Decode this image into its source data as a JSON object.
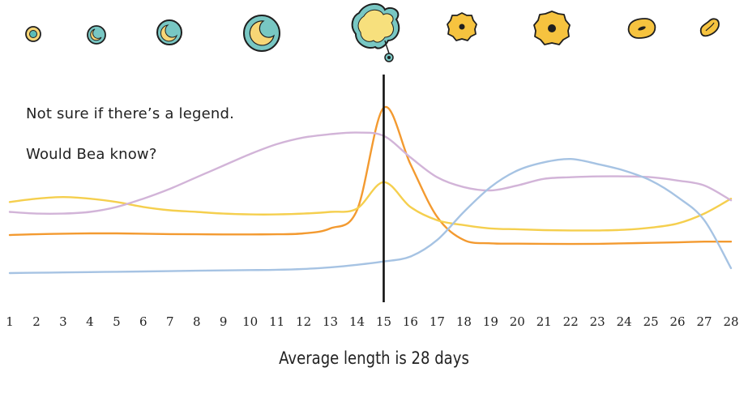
{
  "chart_data": {
    "type": "line",
    "title": "",
    "xlabel": "Average length is 28 days",
    "ylabel": "",
    "x": [
      1,
      2,
      3,
      4,
      5,
      6,
      7,
      8,
      9,
      10,
      11,
      12,
      13,
      14,
      15,
      16,
      17,
      18,
      19,
      20,
      21,
      22,
      23,
      24,
      25,
      26,
      27,
      28
    ],
    "ylim": [
      0,
      1
    ],
    "grid": false,
    "legend": "none",
    "marker_day": 15,
    "phase_icons": [
      "follicle-small-icon",
      "follicle-growing-icon",
      "follicle-larger-icon",
      "follicle-dominant-icon",
      "ovulation-icon",
      "corpus-luteum-icon",
      "corpus-luteum-mature-icon",
      "corpus-luteum-regressing-icon",
      "corpus-albicans-icon"
    ],
    "series": [
      {
        "color": "#f39a30",
        "values": [
          0.23,
          0.235,
          0.238,
          0.24,
          0.24,
          0.238,
          0.236,
          0.235,
          0.234,
          0.234,
          0.235,
          0.24,
          0.27,
          0.38,
          1.0,
          0.66,
          0.34,
          0.2,
          0.18,
          0.178,
          0.177,
          0.176,
          0.177,
          0.18,
          0.183,
          0.186,
          0.19,
          0.19
        ]
      },
      {
        "color": "#f5cf4e",
        "values": [
          0.43,
          0.45,
          0.46,
          0.45,
          0.43,
          0.4,
          0.38,
          0.37,
          0.36,
          0.355,
          0.355,
          0.36,
          0.37,
          0.39,
          0.55,
          0.4,
          0.32,
          0.29,
          0.27,
          0.265,
          0.26,
          0.258,
          0.258,
          0.262,
          0.275,
          0.3,
          0.36,
          0.45
        ]
      },
      {
        "color": "#d2b4d8",
        "values": [
          0.37,
          0.36,
          0.36,
          0.37,
          0.4,
          0.45,
          0.51,
          0.58,
          0.65,
          0.72,
          0.78,
          0.82,
          0.84,
          0.85,
          0.83,
          0.7,
          0.58,
          0.52,
          0.5,
          0.53,
          0.57,
          0.58,
          0.585,
          0.585,
          0.58,
          0.56,
          0.53,
          0.44
        ]
      },
      {
        "color": "#a6c3e3",
        "values": [
          0.0,
          0.002,
          0.004,
          0.006,
          0.008,
          0.01,
          0.012,
          0.014,
          0.016,
          0.018,
          0.02,
          0.025,
          0.035,
          0.05,
          0.07,
          0.1,
          0.2,
          0.37,
          0.52,
          0.62,
          0.67,
          0.69,
          0.66,
          0.62,
          0.56,
          0.46,
          0.32,
          0.03
        ]
      }
    ]
  },
  "annotations": {
    "note1": "Not sure if there’s a legend.",
    "note2": "Would Bea know?"
  }
}
